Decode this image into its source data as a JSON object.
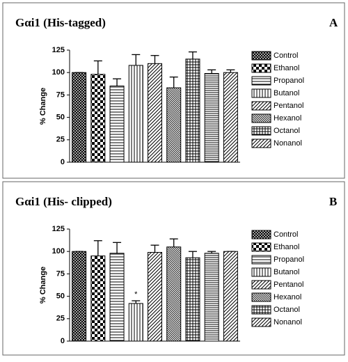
{
  "chart_data": [
    {
      "type": "bar",
      "title": "Gαi1 (His-tagged)",
      "panel_label": "A",
      "ylabel": "% Change",
      "categories": [
        null,
        null,
        null,
        null,
        null,
        null,
        null,
        null,
        null
      ],
      "values": [
        100,
        98,
        85,
        108,
        110,
        83,
        115,
        99,
        100
      ],
      "errors": [
        0,
        15,
        8,
        12,
        9,
        12,
        8,
        4,
        3
      ],
      "patterns": [
        "crosshatch",
        "checker",
        "hlines",
        "vlines",
        "diag",
        "diagdense",
        "grid",
        "hlinesdense",
        "diag"
      ],
      "legend": [
        {
          "name": "Control",
          "pattern": "crosshatch"
        },
        {
          "name": "Ethanol",
          "pattern": "checker"
        },
        {
          "name": "Propanol",
          "pattern": "hlines"
        },
        {
          "name": "Butanol",
          "pattern": "vlines"
        },
        {
          "name": "Pentanol",
          "pattern": "diag"
        },
        {
          "name": "Hexanol",
          "pattern": "diagdense"
        },
        {
          "name": "Octanol",
          "pattern": "grid"
        },
        {
          "name": "Nonanol",
          "pattern": "diag"
        }
      ],
      "ylim": [
        0,
        125
      ],
      "yticks": [
        0,
        25,
        50,
        75,
        100,
        125
      ]
    },
    {
      "type": "bar",
      "title": "Gαi1 (His- clipped)",
      "panel_label": "B",
      "ylabel": "% Change",
      "categories": [
        null,
        null,
        null,
        null,
        null,
        null,
        null,
        null,
        null
      ],
      "values": [
        100,
        95,
        98,
        42,
        99,
        105,
        93,
        98,
        100
      ],
      "errors": [
        0,
        17,
        12,
        3,
        8,
        9,
        7,
        2,
        0
      ],
      "patterns": [
        "crosshatch",
        "checker",
        "hlines",
        "vlines",
        "diag",
        "diagdense",
        "grid",
        "hlinesdense",
        "diag"
      ],
      "annotations": [
        {
          "index": 3,
          "text": "*"
        }
      ],
      "legend": [
        {
          "name": "Control",
          "pattern": "crosshatch"
        },
        {
          "name": "Ethanol",
          "pattern": "checker"
        },
        {
          "name": "Propanol",
          "pattern": "hlines"
        },
        {
          "name": "Butanol",
          "pattern": "vlines"
        },
        {
          "name": "Pentanol",
          "pattern": "diag"
        },
        {
          "name": "Hexanol",
          "pattern": "diagdense"
        },
        {
          "name": "Octanol",
          "pattern": "grid"
        },
        {
          "name": "Nonanol",
          "pattern": "diag"
        }
      ],
      "ylim": [
        0,
        125
      ],
      "yticks": [
        0,
        25,
        50,
        75,
        100,
        125
      ]
    }
  ]
}
